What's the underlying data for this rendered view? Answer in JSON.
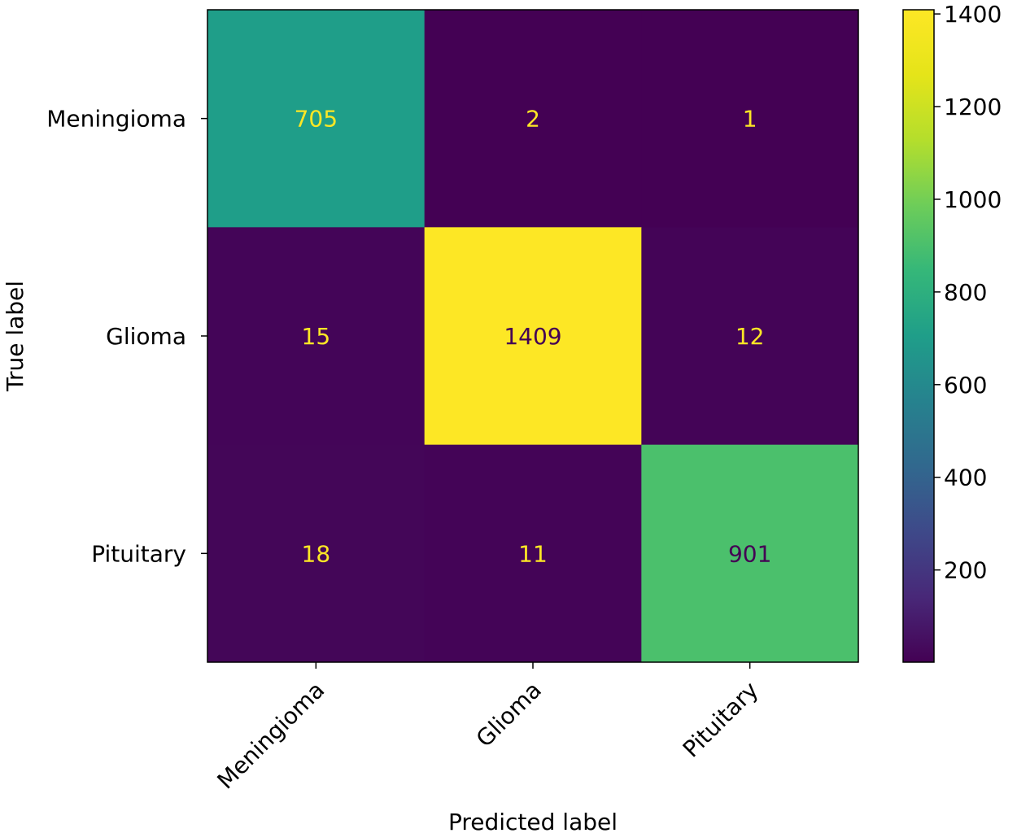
{
  "chart_data": {
    "type": "heatmap",
    "title": "",
    "xlabel": "Predicted label",
    "ylabel": "True label",
    "x_categories": [
      "Meningioma",
      "Glioma",
      "Pituitary"
    ],
    "y_categories": [
      "Meningioma",
      "Glioma",
      "Pituitary"
    ],
    "values": [
      [
        705,
        2,
        1
      ],
      [
        15,
        1409,
        12
      ],
      [
        18,
        11,
        901
      ]
    ],
    "colormap": "viridis",
    "vmin": 1,
    "vmax": 1409,
    "colorbar_ticks": [
      200,
      400,
      600,
      800,
      1000,
      1200,
      1400
    ],
    "grid": false,
    "colors": {
      "light_text": "#fde725",
      "dark_text": "#440154"
    }
  }
}
